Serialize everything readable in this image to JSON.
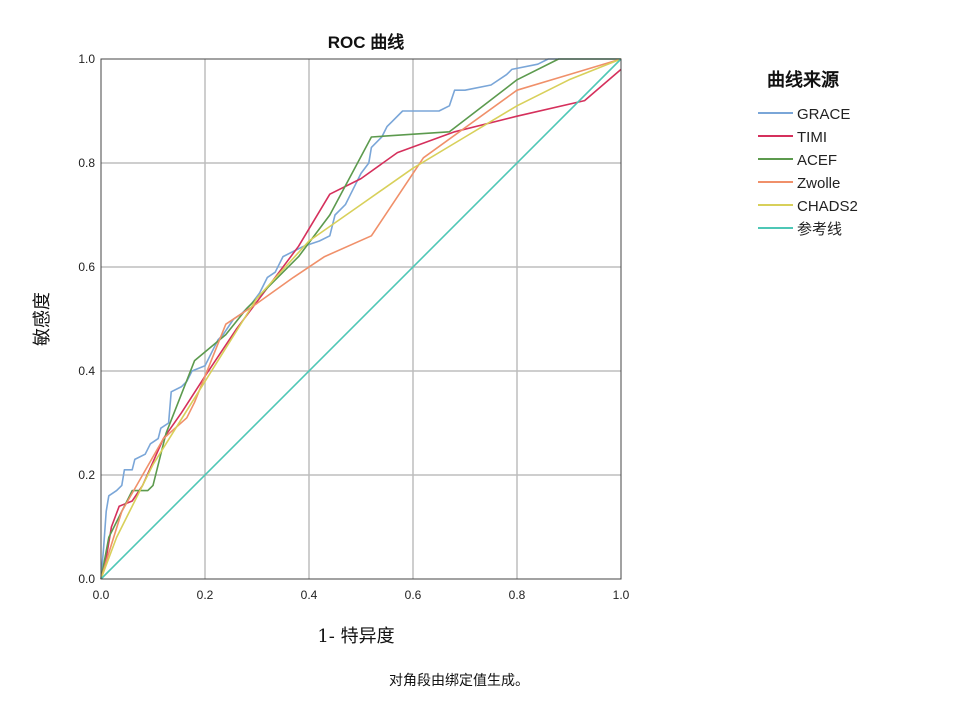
{
  "chart_data": {
    "type": "line",
    "title": "ROC 曲线",
    "xlabel": "1- 特异度",
    "ylabel": "敏感度",
    "xlim": [
      0,
      1
    ],
    "ylim": [
      0,
      1
    ],
    "xticks": [
      "0.0",
      "0.2",
      "0.4",
      "0.6",
      "0.8",
      "1.0"
    ],
    "yticks": [
      "0.0",
      "0.2",
      "0.4",
      "0.6",
      "0.8",
      "1.0"
    ],
    "grid": true,
    "legend": {
      "title": "曲线来源",
      "position": "right"
    },
    "footnote": "对角段由绑定值生成。",
    "series": [
      {
        "name": "GRACE",
        "color": "#7aa6d8",
        "points": [
          [
            0,
            0
          ],
          [
            0.005,
            0.06
          ],
          [
            0.01,
            0.13
          ],
          [
            0.015,
            0.16
          ],
          [
            0.03,
            0.17
          ],
          [
            0.04,
            0.18
          ],
          [
            0.045,
            0.21
          ],
          [
            0.06,
            0.21
          ],
          [
            0.065,
            0.23
          ],
          [
            0.085,
            0.24
          ],
          [
            0.095,
            0.26
          ],
          [
            0.11,
            0.27
          ],
          [
            0.115,
            0.29
          ],
          [
            0.13,
            0.3
          ],
          [
            0.135,
            0.36
          ],
          [
            0.155,
            0.37
          ],
          [
            0.165,
            0.38
          ],
          [
            0.175,
            0.4
          ],
          [
            0.2,
            0.41
          ],
          [
            0.205,
            0.42
          ],
          [
            0.215,
            0.44
          ],
          [
            0.225,
            0.46
          ],
          [
            0.235,
            0.47
          ],
          [
            0.255,
            0.5
          ],
          [
            0.27,
            0.51
          ],
          [
            0.29,
            0.53
          ],
          [
            0.305,
            0.55
          ],
          [
            0.32,
            0.58
          ],
          [
            0.335,
            0.59
          ],
          [
            0.35,
            0.62
          ],
          [
            0.37,
            0.63
          ],
          [
            0.39,
            0.64
          ],
          [
            0.42,
            0.65
          ],
          [
            0.44,
            0.66
          ],
          [
            0.45,
            0.7
          ],
          [
            0.46,
            0.71
          ],
          [
            0.47,
            0.72
          ],
          [
            0.48,
            0.74
          ],
          [
            0.49,
            0.76
          ],
          [
            0.5,
            0.78
          ],
          [
            0.515,
            0.8
          ],
          [
            0.52,
            0.83
          ],
          [
            0.54,
            0.85
          ],
          [
            0.55,
            0.87
          ],
          [
            0.56,
            0.88
          ],
          [
            0.58,
            0.9
          ],
          [
            0.62,
            0.9
          ],
          [
            0.65,
            0.9
          ],
          [
            0.67,
            0.91
          ],
          [
            0.68,
            0.94
          ],
          [
            0.7,
            0.94
          ],
          [
            0.75,
            0.95
          ],
          [
            0.78,
            0.97
          ],
          [
            0.79,
            0.98
          ],
          [
            0.84,
            0.99
          ],
          [
            0.86,
            1.0
          ],
          [
            1.0,
            1.0
          ]
        ]
      },
      {
        "name": "TIMI",
        "color": "#d5305c",
        "points": [
          [
            0,
            0
          ],
          [
            0.01,
            0.04
          ],
          [
            0.02,
            0.1
          ],
          [
            0.035,
            0.14
          ],
          [
            0.06,
            0.15
          ],
          [
            0.08,
            0.18
          ],
          [
            0.12,
            0.27
          ],
          [
            0.155,
            0.32
          ],
          [
            0.2,
            0.39
          ],
          [
            0.26,
            0.48
          ],
          [
            0.32,
            0.56
          ],
          [
            0.38,
            0.64
          ],
          [
            0.44,
            0.74
          ],
          [
            0.5,
            0.77
          ],
          [
            0.57,
            0.82
          ],
          [
            0.68,
            0.86
          ],
          [
            0.8,
            0.89
          ],
          [
            0.93,
            0.92
          ],
          [
            1.0,
            0.98
          ]
        ]
      },
      {
        "name": "ACEF",
        "color": "#5c9a4e",
        "points": [
          [
            0,
            0
          ],
          [
            0.015,
            0.08
          ],
          [
            0.04,
            0.13
          ],
          [
            0.06,
            0.17
          ],
          [
            0.09,
            0.17
          ],
          [
            0.1,
            0.18
          ],
          [
            0.125,
            0.28
          ],
          [
            0.18,
            0.42
          ],
          [
            0.24,
            0.47
          ],
          [
            0.28,
            0.52
          ],
          [
            0.32,
            0.56
          ],
          [
            0.38,
            0.62
          ],
          [
            0.44,
            0.7
          ],
          [
            0.52,
            0.85
          ],
          [
            0.67,
            0.86
          ],
          [
            0.8,
            0.96
          ],
          [
            0.88,
            1.0
          ],
          [
            1.0,
            1.0
          ]
        ]
      },
      {
        "name": "Zwolle",
        "color": "#f0906a",
        "points": [
          [
            0,
            0
          ],
          [
            0.015,
            0.05
          ],
          [
            0.04,
            0.13
          ],
          [
            0.08,
            0.2
          ],
          [
            0.12,
            0.27
          ],
          [
            0.165,
            0.31
          ],
          [
            0.18,
            0.34
          ],
          [
            0.24,
            0.49
          ],
          [
            0.3,
            0.53
          ],
          [
            0.37,
            0.58
          ],
          [
            0.43,
            0.62
          ],
          [
            0.52,
            0.66
          ],
          [
            0.62,
            0.81
          ],
          [
            0.8,
            0.94
          ],
          [
            0.9,
            0.97
          ],
          [
            1.0,
            1.0
          ]
        ]
      },
      {
        "name": "CHADS2",
        "color": "#d8d05a",
        "points": [
          [
            0,
            0
          ],
          [
            0.03,
            0.08
          ],
          [
            0.1,
            0.22
          ],
          [
            0.2,
            0.38
          ],
          [
            0.3,
            0.54
          ],
          [
            0.4,
            0.65
          ],
          [
            0.5,
            0.72
          ],
          [
            0.6,
            0.79
          ],
          [
            0.7,
            0.85
          ],
          [
            0.8,
            0.91
          ],
          [
            0.9,
            0.96
          ],
          [
            1.0,
            1.0
          ]
        ]
      },
      {
        "name": "参考线",
        "color": "#4ec7b6",
        "points": [
          [
            0,
            0
          ],
          [
            1,
            1
          ]
        ]
      }
    ]
  }
}
